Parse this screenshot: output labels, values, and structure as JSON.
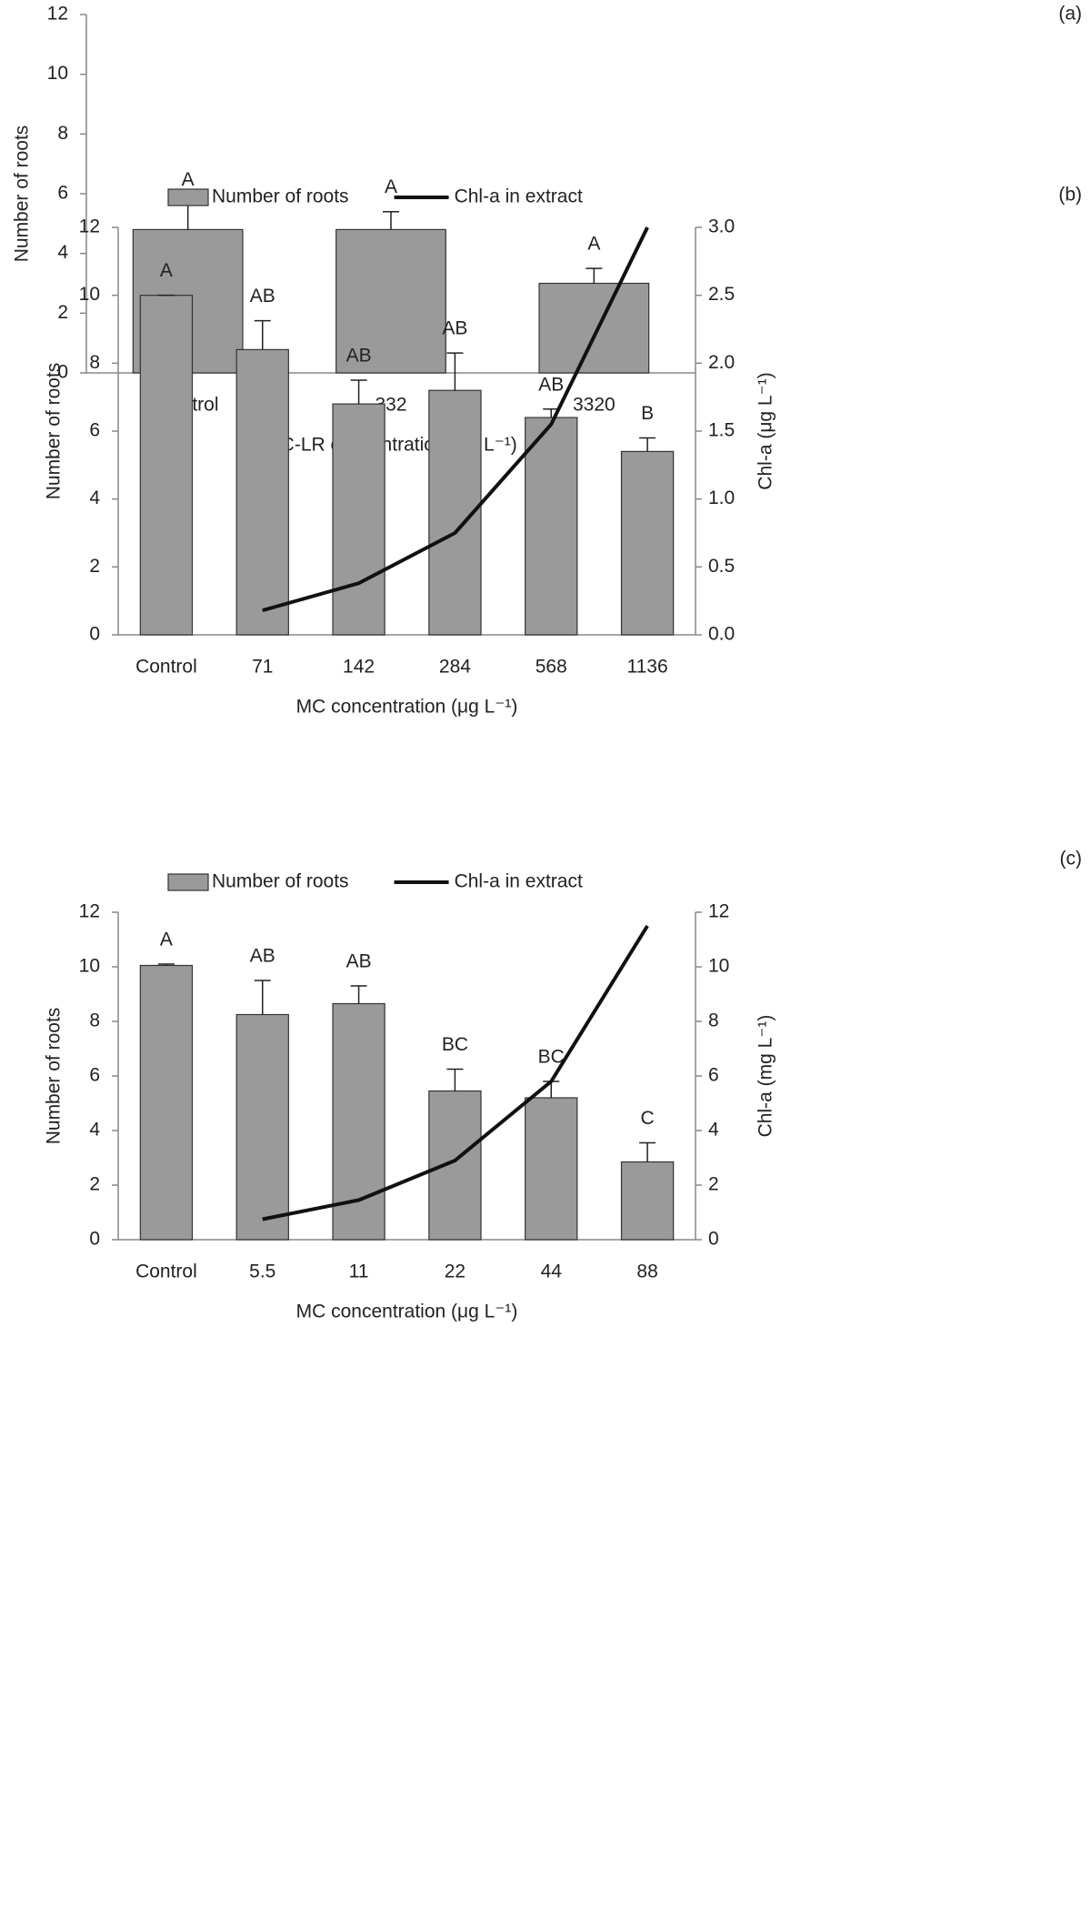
{
  "chart_data": [
    {
      "type": "bar",
      "panel": "(a)",
      "y_label": "Number of roots",
      "x_label": "MC-LR concentration (μg L⁻¹)",
      "categories": [
        "Control",
        "332",
        "3320"
      ],
      "values": [
        4.8,
        4.8,
        3.0
      ],
      "errors": [
        0.85,
        0.6,
        0.5
      ],
      "letters": [
        "A",
        "A",
        "A"
      ],
      "color": "#9a9a9a",
      "ylim": [
        0,
        12
      ],
      "yticks": [
        0,
        2,
        4,
        6,
        8,
        10,
        12
      ]
    },
    {
      "type": "combo",
      "panel": "(b)",
      "y_label": "Number of roots",
      "y2_label": "Chl-a (μg L⁻¹)",
      "x_label": "MC concentration (μg L⁻¹)",
      "categories": [
        "Control",
        "71",
        "142",
        "284",
        "568",
        "1136"
      ],
      "series": [
        {
          "name": "Number of roots",
          "color": "#9a9a9a",
          "values": [
            10,
            8.4,
            6.8,
            7.2,
            6.4,
            5.4
          ],
          "errors": [
            0,
            0.85,
            0.7,
            1.1,
            0.25,
            0.4
          ],
          "letters": [
            "A",
            "AB",
            "AB",
            "AB",
            "AB",
            "B"
          ]
        },
        {
          "name": "Chl-a in extract",
          "color": "#111111",
          "axis": "y2",
          "values": [
            null,
            0.18,
            0.38,
            0.75,
            1.55,
            3.0
          ]
        }
      ],
      "ylim": [
        0,
        12
      ],
      "yticks": [
        0,
        2,
        4,
        6,
        8,
        10,
        12
      ],
      "y2lim": [
        0,
        3
      ],
      "y2ticks": [
        {
          "value": 0,
          "label": "0.0"
        },
        0.5,
        {
          "value": 1,
          "label": "1.0"
        },
        1.5,
        {
          "value": 2,
          "label": "2.0"
        },
        2.5,
        {
          "value": 3,
          "label": "3.0"
        }
      ]
    },
    {
      "type": "combo",
      "panel": "(c)",
      "y_label": "Number of roots",
      "y2_label": "Chl-a (mg L⁻¹)",
      "x_label": "MC concentration (μg L⁻¹)",
      "categories": [
        "Control",
        "5.5",
        "11",
        "22",
        "44",
        "88"
      ],
      "series": [
        {
          "name": "Number of roots",
          "color": "#9a9a9a",
          "values": [
            10.05,
            8.25,
            8.65,
            5.45,
            5.2,
            2.85
          ],
          "errors": [
            0.05,
            1.25,
            0.65,
            0.8,
            0.6,
            0.7
          ],
          "letters": [
            "A",
            "AB",
            "AB",
            "BC",
            "BC",
            "C"
          ]
        },
        {
          "name": "Chl-a in extract",
          "color": "#111111",
          "axis": "y2",
          "values": [
            null,
            0.75,
            1.45,
            2.9,
            5.8,
            11.5
          ]
        }
      ],
      "ylim": [
        0,
        12
      ],
      "yticks": [
        0,
        2,
        4,
        6,
        8,
        10,
        12
      ],
      "y2lim": [
        0,
        12
      ],
      "y2ticks": [
        0,
        2,
        4,
        6,
        8,
        10,
        12
      ]
    }
  ]
}
